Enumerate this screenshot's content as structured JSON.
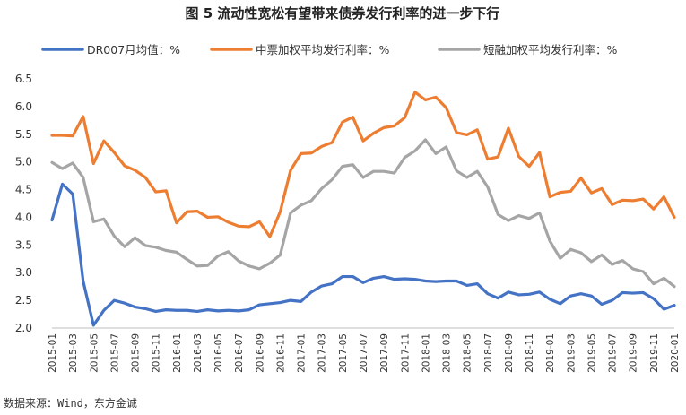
{
  "chart_data": {
    "type": "line",
    "title": "图 5   流动性宽松有望带来债券发行利率的进一步下行",
    "source": "数据来源：Wind，东方金诚",
    "xlabel": "",
    "ylabel": "",
    "ylim": [
      2.0,
      6.5
    ],
    "yticks": [
      "2.0",
      "2.5",
      "3.0",
      "3.5",
      "4.0",
      "4.5",
      "5.0",
      "5.5",
      "6.0",
      "6.5"
    ],
    "x": [
      "2015-01",
      "2015-02",
      "2015-03",
      "2015-04",
      "2015-05",
      "2015-06",
      "2015-07",
      "2015-08",
      "2015-09",
      "2015-10",
      "2015-11",
      "2015-12",
      "2016-01",
      "2016-02",
      "2016-03",
      "2016-04",
      "2016-05",
      "2016-06",
      "2016-07",
      "2016-08",
      "2016-09",
      "2016-10",
      "2016-11",
      "2016-12",
      "2017-01",
      "2017-02",
      "2017-03",
      "2017-04",
      "2017-05",
      "2017-06",
      "2017-07",
      "2017-08",
      "2017-09",
      "2017-10",
      "2017-11",
      "2017-12",
      "2018-01",
      "2018-02",
      "2018-03",
      "2018-04",
      "2018-05",
      "2018-06",
      "2018-07",
      "2018-08",
      "2018-09",
      "2018-10",
      "2018-11",
      "2018-12",
      "2019-01",
      "2019-02",
      "2019-03",
      "2019-04",
      "2019-05",
      "2019-06",
      "2019-07",
      "2019-08",
      "2019-09",
      "2019-10",
      "2019-11",
      "2019-12",
      "2020-01"
    ],
    "xticklabels": [
      "2015-01",
      "2015-03",
      "2015-05",
      "2015-07",
      "2015-09",
      "2015-11",
      "2016-01",
      "2016-03",
      "2016-05",
      "2016-07",
      "2016-09",
      "2016-11",
      "2017-01",
      "2017-03",
      "2017-05",
      "2017-07",
      "2017-09",
      "2017-11",
      "2018-01",
      "2018-03",
      "2018-05",
      "2018-07",
      "2018-09",
      "2018-11",
      "2019-01",
      "2019-03",
      "2019-05",
      "2019-07",
      "2019-09",
      "2019-11",
      "2020-01"
    ],
    "legend_position": "top",
    "series": [
      {
        "name": "DR007月均值：%",
        "color": "#4472C4",
        "values": [
          3.95,
          4.6,
          4.42,
          2.85,
          2.05,
          2.32,
          2.5,
          2.45,
          2.38,
          2.35,
          2.3,
          2.33,
          2.32,
          2.32,
          2.3,
          2.33,
          2.31,
          2.32,
          2.31,
          2.33,
          2.42,
          2.44,
          2.46,
          2.5,
          2.48,
          2.65,
          2.76,
          2.8,
          2.93,
          2.93,
          2.82,
          2.9,
          2.93,
          2.88,
          2.89,
          2.88,
          2.85,
          2.84,
          2.85,
          2.85,
          2.77,
          2.8,
          2.62,
          2.54,
          2.65,
          2.6,
          2.61,
          2.65,
          2.52,
          2.44,
          2.58,
          2.62,
          2.58,
          2.43,
          2.5,
          2.64,
          2.63,
          2.64,
          2.53,
          2.34,
          2.41
        ]
      },
      {
        "name": "中票加权平均发行利率：%",
        "color": "#ED7D31",
        "values": [
          5.48,
          5.48,
          5.47,
          5.82,
          4.97,
          5.38,
          5.17,
          4.93,
          4.85,
          4.72,
          4.46,
          4.48,
          3.9,
          4.1,
          4.11,
          4.0,
          4.01,
          3.91,
          3.84,
          3.83,
          3.92,
          3.65,
          4.1,
          4.85,
          5.15,
          5.16,
          5.28,
          5.35,
          5.72,
          5.81,
          5.38,
          5.52,
          5.62,
          5.65,
          5.8,
          6.26,
          6.12,
          6.17,
          5.98,
          5.53,
          5.49,
          5.58,
          5.05,
          5.09,
          5.61,
          5.1,
          4.92,
          5.17,
          4.37,
          4.45,
          4.47,
          4.71,
          4.44,
          4.52,
          4.23,
          4.31,
          4.3,
          4.33,
          4.15,
          4.37,
          4.0
        ]
      },
      {
        "name": "短融加权平均发行利率：%",
        "color": "#A5A5A5",
        "values": [
          4.99,
          4.88,
          4.98,
          4.72,
          3.92,
          3.97,
          3.66,
          3.47,
          3.63,
          3.49,
          3.46,
          3.4,
          3.37,
          3.24,
          3.12,
          3.13,
          3.3,
          3.38,
          3.21,
          3.12,
          3.07,
          3.17,
          3.32,
          4.08,
          4.22,
          4.3,
          4.52,
          4.68,
          4.92,
          4.95,
          4.72,
          4.83,
          4.83,
          4.8,
          5.08,
          5.2,
          5.4,
          5.15,
          5.27,
          4.84,
          4.72,
          4.83,
          4.55,
          4.05,
          3.94,
          4.03,
          3.98,
          4.08,
          3.57,
          3.26,
          3.42,
          3.36,
          3.2,
          3.32,
          3.15,
          3.22,
          3.07,
          3.02,
          2.8,
          2.9,
          2.75
        ]
      }
    ]
  }
}
